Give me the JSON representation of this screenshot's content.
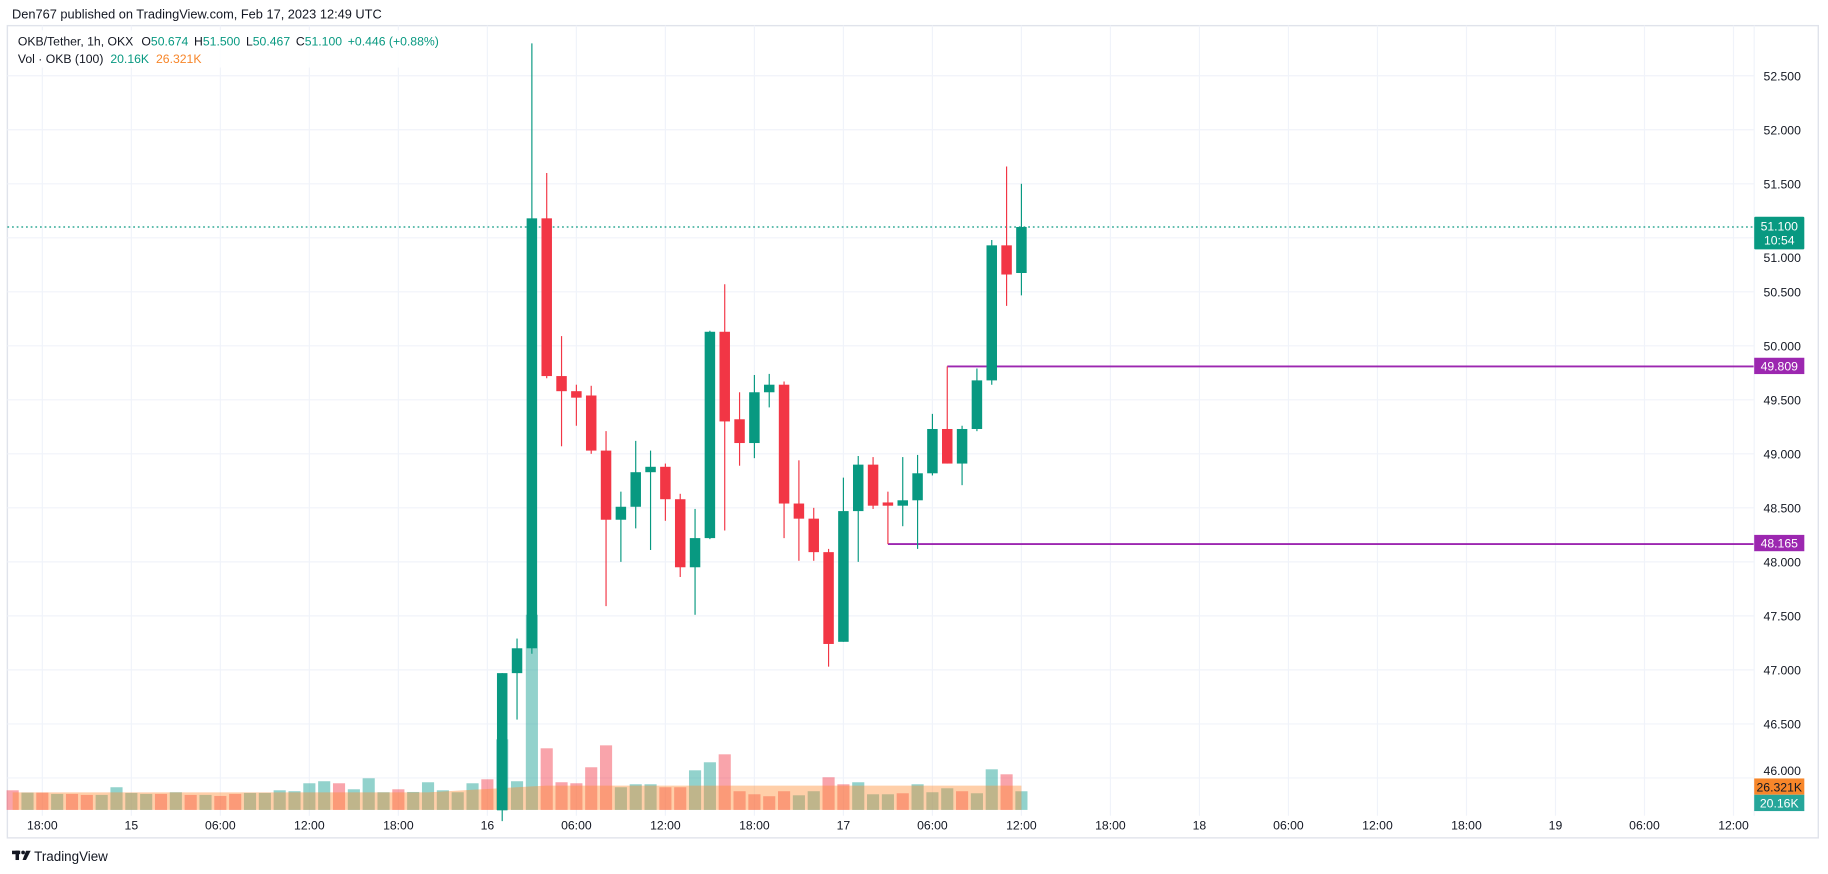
{
  "header": {
    "published": "Den767 published on TradingView.com, Feb 17, 2023 12:49 UTC"
  },
  "legend": {
    "symbol": "OKB/Tether, 1h, OKX",
    "o_label": "O",
    "o": "50.674",
    "h_label": "H",
    "h": "51.500",
    "l_label": "L",
    "l": "50.467",
    "c_label": "C",
    "c": "51.100",
    "change": "+0.446 (+0.88%)",
    "vol_label": "Vol · OKB (100)",
    "vol": "20.16K",
    "vol_ma": "26.321K"
  },
  "price_tags": {
    "last_price": "51.100",
    "countdown": "10:54",
    "level_upper": "49.809",
    "level_lower": "48.165",
    "vol_ma": "26.321K",
    "vol": "20.16K"
  },
  "footer": {
    "brand": "TradingView"
  },
  "colors": {
    "up": "#089981",
    "down": "#f23645",
    "level": "#9c27b0",
    "ma": "#f7862a"
  },
  "chart_data": {
    "type": "candlestick",
    "interval": "1h",
    "price_ticks": [
      "52.500",
      "52.000",
      "51.500",
      "51.000",
      "50.500",
      "50.000",
      "49.500",
      "49.000",
      "48.500",
      "48.000",
      "47.500",
      "47.000",
      "46.500",
      "46.000"
    ],
    "ylim": [
      46.0,
      52.5
    ],
    "time_ticks": [
      "18:00",
      "15",
      "06:00",
      "12:00",
      "18:00",
      "16",
      "06:00",
      "12:00",
      "18:00",
      "17",
      "06:00",
      "12:00",
      "18:00",
      "18",
      "06:00",
      "12:00",
      "18:00",
      "19",
      "06:00",
      "12:00"
    ],
    "levels": [
      49.809,
      48.165
    ],
    "last_price": 51.1,
    "candles_start": "2023-02-16 01:00",
    "candles_ohlc": [
      [
        45.7,
        46.97,
        45.6,
        46.97
      ],
      [
        46.97,
        47.29,
        46.54,
        47.2
      ],
      [
        47.2,
        52.8,
        47.15,
        51.18
      ],
      [
        51.18,
        51.6,
        49.7,
        49.72
      ],
      [
        49.72,
        50.09,
        49.07,
        49.58
      ],
      [
        49.58,
        49.64,
        49.26,
        49.52
      ],
      [
        49.54,
        49.63,
        49.0,
        49.03
      ],
      [
        49.03,
        49.21,
        47.59,
        48.39
      ],
      [
        48.39,
        48.65,
        48.0,
        48.51
      ],
      [
        48.51,
        49.12,
        48.31,
        48.83
      ],
      [
        48.83,
        49.03,
        48.11,
        48.88
      ],
      [
        48.88,
        48.91,
        48.38,
        48.58
      ],
      [
        48.58,
        48.63,
        47.86,
        47.95
      ],
      [
        47.95,
        48.49,
        47.51,
        48.22
      ],
      [
        48.22,
        50.14,
        48.21,
        50.13
      ],
      [
        50.13,
        50.57,
        48.29,
        49.3
      ],
      [
        49.32,
        49.57,
        48.89,
        49.1
      ],
      [
        49.1,
        49.73,
        48.96,
        49.57
      ],
      [
        49.57,
        49.74,
        49.43,
        49.64
      ],
      [
        49.64,
        49.67,
        48.22,
        48.54
      ],
      [
        48.54,
        48.94,
        48.01,
        48.4
      ],
      [
        48.4,
        48.5,
        48.01,
        48.09
      ],
      [
        48.09,
        48.12,
        47.03,
        47.24
      ],
      [
        47.26,
        48.78,
        47.26,
        48.47
      ],
      [
        48.47,
        48.98,
        48.0,
        48.9
      ],
      [
        48.9,
        48.97,
        48.49,
        48.52
      ],
      [
        48.55,
        48.65,
        48.165,
        48.52
      ],
      [
        48.52,
        48.97,
        48.33,
        48.57
      ],
      [
        48.57,
        48.99,
        48.12,
        48.82
      ],
      [
        48.82,
        49.37,
        48.8,
        49.23
      ],
      [
        49.23,
        49.809,
        48.91,
        48.91
      ],
      [
        48.91,
        49.26,
        48.71,
        49.23
      ],
      [
        49.23,
        49.79,
        49.21,
        49.68
      ],
      [
        49.68,
        50.98,
        49.64,
        50.93
      ],
      [
        50.93,
        51.66,
        50.37,
        50.66
      ],
      [
        50.674,
        51.5,
        50.467,
        51.1
      ]
    ],
    "volume_start": "2023-02-14 16:00",
    "volume_k": [
      21.2,
      18.7,
      18.7,
      17.3,
      17.3,
      16.2,
      16.2,
      24.5,
      18.4,
      17.3,
      17.3,
      19.1,
      16.2,
      16.2,
      15.1,
      17.3,
      18.4,
      18.4,
      21.2,
      20.2,
      28.8,
      31.0,
      28.8,
      22.3,
      34.2,
      19.1,
      22.3,
      19.4,
      29.9,
      21.2,
      19.1,
      28.8,
      33.1,
      76.3,
      31.0,
      211,
      66.6,
      29.9,
      28.8,
      46.1,
      69.8,
      24.5,
      27.7,
      27.7,
      24.5,
      24.5,
      42.8,
      51.5,
      60.1,
      20.2,
      16.9,
      14.8,
      20.2,
      15.8,
      20.2,
      35.3,
      27.7,
      29.9,
      16.9,
      16.9,
      18.0,
      27.7,
      19.1,
      23.4,
      20.2,
      18.0,
      43.9,
      38.5,
      20.16
    ],
    "volume_up": [
      0,
      1,
      0,
      1,
      0,
      0,
      1,
      1,
      1,
      1,
      0,
      1,
      0,
      1,
      0,
      0,
      1,
      1,
      1,
      1,
      1,
      1,
      0,
      1,
      1,
      1,
      0,
      1,
      1,
      1,
      1,
      1,
      0,
      1,
      1,
      1,
      0,
      0,
      0,
      0,
      0,
      1,
      1,
      1,
      0,
      0,
      1,
      1,
      0,
      0,
      0,
      0,
      0,
      1,
      1,
      0,
      0,
      1,
      1,
      1,
      0,
      1,
      1,
      1,
      0,
      1,
      1,
      0,
      1
    ],
    "volume_ma_k": 26.321
  }
}
